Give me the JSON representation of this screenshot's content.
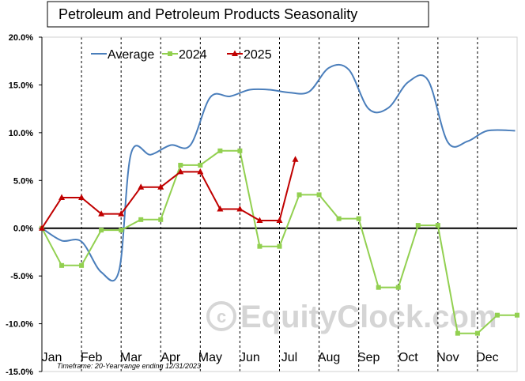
{
  "chart_data": {
    "type": "line",
    "title": "Petroleum and Petroleum Products Seasonality",
    "footnote": "Timeframe: 20-Year range ending 12/31/2023",
    "watermark": "EquityClock.com",
    "ylim": [
      -15,
      20
    ],
    "yticks": [
      "20.0%",
      "15.0%",
      "10.0%",
      "5.0%",
      "0.0%",
      "-5.0%",
      "-10.0%",
      "-15.0%"
    ],
    "months": [
      "Jan",
      "Feb",
      "Mar",
      "Apr",
      "May",
      "Jun",
      "Jul",
      "Aug",
      "Sep",
      "Oct",
      "Nov",
      "Dec"
    ],
    "legend_position": "top-left",
    "grid": "vertical dashed month separators",
    "series": [
      {
        "name": "Average",
        "color": "#4a7ebb",
        "marker": "none",
        "points": [
          [
            0,
            0
          ],
          [
            0.5,
            -1.3
          ],
          [
            1.0,
            -1.4
          ],
          [
            1.5,
            -4.6
          ],
          [
            1.95,
            -4.4
          ],
          [
            2.25,
            7.8
          ],
          [
            2.75,
            7.7
          ],
          [
            3.25,
            8.7
          ],
          [
            3.75,
            8.7
          ],
          [
            4.25,
            13.7
          ],
          [
            4.75,
            13.8
          ],
          [
            5.25,
            14.5
          ],
          [
            5.75,
            14.5
          ],
          [
            6.25,
            14.2
          ],
          [
            6.75,
            14.3
          ],
          [
            7.25,
            16.8
          ],
          [
            7.75,
            16.6
          ],
          [
            8.25,
            12.5
          ],
          [
            8.75,
            12.6
          ],
          [
            9.25,
            15.3
          ],
          [
            9.75,
            15.5
          ],
          [
            10.25,
            9.0
          ],
          [
            10.75,
            9.1
          ],
          [
            11.25,
            10.2
          ],
          [
            11.95,
            10.2
          ]
        ]
      },
      {
        "name": "2024",
        "color": "#92d050",
        "marker": "square",
        "points": [
          [
            0,
            0
          ],
          [
            0.5,
            -3.9
          ],
          [
            1.0,
            -3.9
          ],
          [
            1.5,
            -0.2
          ],
          [
            2.0,
            -0.2
          ],
          [
            2.5,
            0.9
          ],
          [
            3.0,
            0.9
          ],
          [
            3.5,
            6.6
          ],
          [
            4.0,
            6.6
          ],
          [
            4.5,
            8.1
          ],
          [
            5.0,
            8.1
          ],
          [
            5.5,
            -1.9
          ],
          [
            6.0,
            -1.9
          ],
          [
            6.5,
            3.5
          ],
          [
            7.0,
            3.5
          ],
          [
            7.5,
            1.0
          ],
          [
            8.0,
            1.0
          ],
          [
            8.5,
            -6.2
          ],
          [
            9.0,
            -6.2
          ],
          [
            9.5,
            0.3
          ],
          [
            10.0,
            0.3
          ],
          [
            10.5,
            -11.0
          ],
          [
            11.0,
            -11.0
          ],
          [
            11.5,
            -9.1
          ],
          [
            12.0,
            -9.1
          ]
        ]
      },
      {
        "name": "2025",
        "color": "#c00000",
        "marker": "triangle",
        "points": [
          [
            0,
            0
          ],
          [
            0.5,
            3.2
          ],
          [
            1.0,
            3.2
          ],
          [
            1.5,
            1.5
          ],
          [
            2.0,
            1.5
          ],
          [
            2.5,
            4.3
          ],
          [
            3.0,
            4.3
          ],
          [
            3.5,
            5.9
          ],
          [
            4.0,
            5.9
          ],
          [
            4.5,
            2.0
          ],
          [
            5.0,
            2.0
          ],
          [
            5.5,
            0.8
          ],
          [
            6.0,
            0.8
          ],
          [
            6.4,
            7.2
          ]
        ]
      }
    ]
  }
}
